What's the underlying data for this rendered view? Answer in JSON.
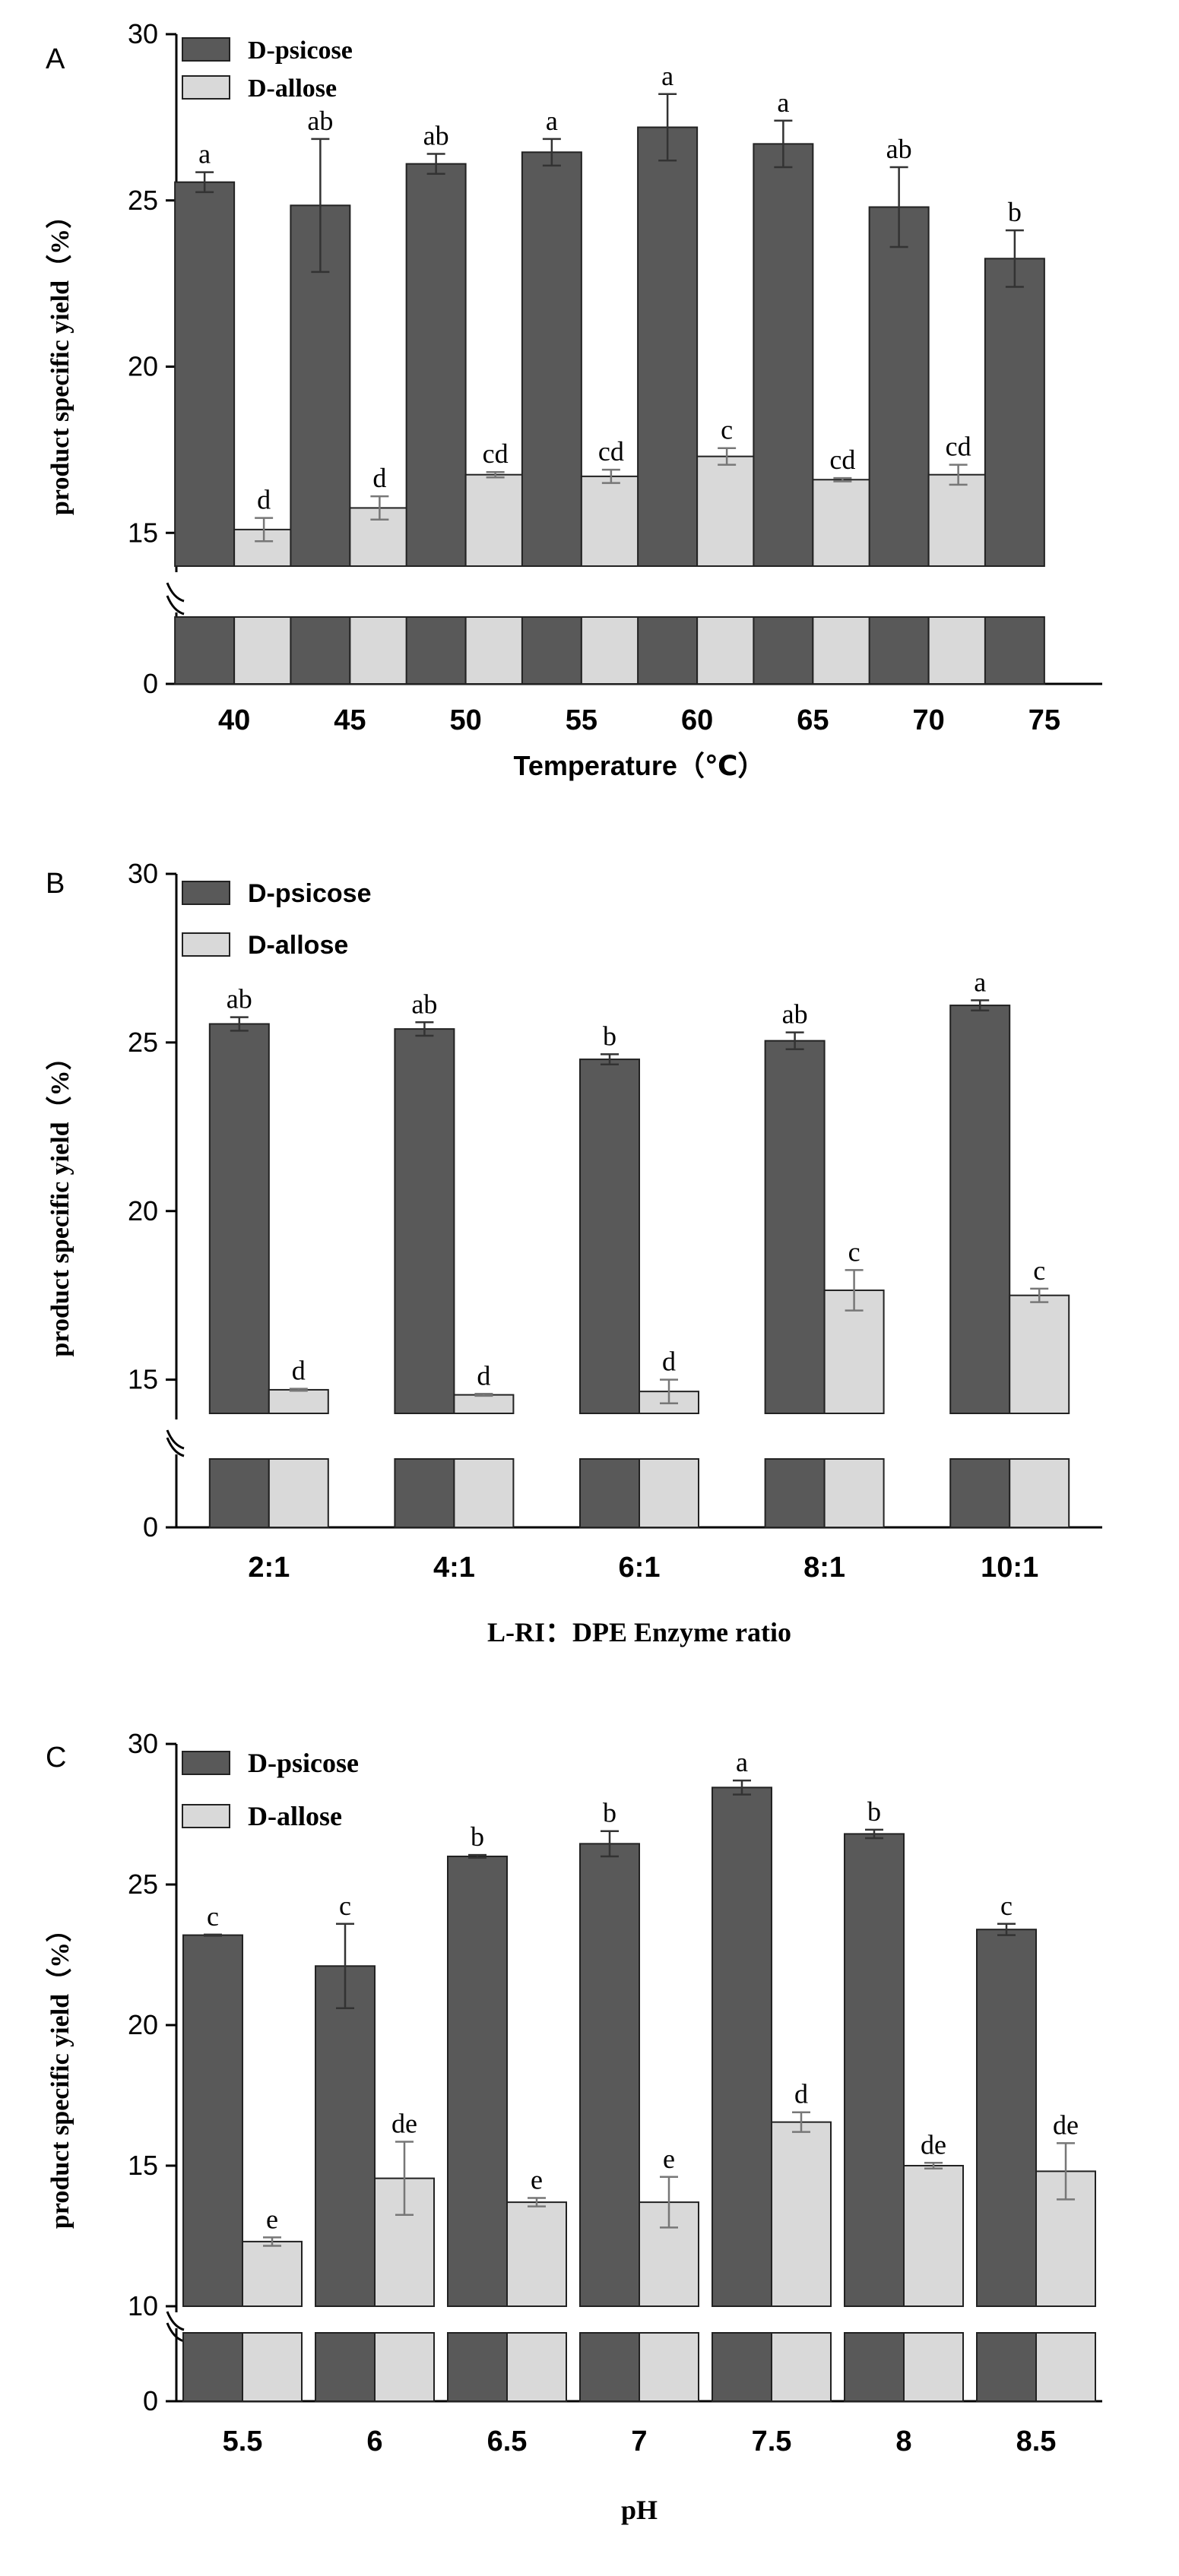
{
  "chart_data": [
    {
      "type": "bar",
      "panel_letter": "A",
      "categories": [
        "40",
        "45",
        "50",
        "55",
        "60",
        "65",
        "70",
        "75"
      ],
      "series": [
        {
          "name": "D-psicose",
          "color": "#595959",
          "values": [
            25.55,
            24.85,
            26.1,
            26.45,
            27.2,
            26.7,
            24.8,
            23.25
          ],
          "errors": [
            0.3,
            2.0,
            0.3,
            0.4,
            1.0,
            0.7,
            1.2,
            0.85
          ],
          "letters": [
            "a",
            "ab",
            "ab",
            "a",
            "a",
            "a",
            "ab",
            "b"
          ]
        },
        {
          "name": "D-allose",
          "color": "#d9d9d9",
          "values": [
            15.1,
            15.75,
            16.75,
            16.7,
            17.3,
            16.6,
            16.75,
            null
          ],
          "errors": [
            0.35,
            0.35,
            0.08,
            0.2,
            0.25,
            0.05,
            0.3,
            null
          ],
          "letters": [
            "d",
            "d",
            "cd",
            "cd",
            "c",
            "cd",
            "cd",
            ""
          ]
        }
      ],
      "xlabel": "Temperature（℃）",
      "ylabel": "product specific yield（%）",
      "ylim": [
        14,
        30
      ],
      "yticks": [
        "15",
        "20",
        "25",
        "30"
      ],
      "axis_break": true,
      "zero_label": "0",
      "legend": "top-left",
      "grid": false
    },
    {
      "type": "bar",
      "panel_letter": "B",
      "categories": [
        "2:1",
        "4:1",
        "6:1",
        "8:1",
        "10:1"
      ],
      "series": [
        {
          "name": "D-psicose",
          "color": "#595959",
          "values": [
            25.55,
            25.4,
            24.5,
            25.05,
            26.1
          ],
          "errors": [
            0.2,
            0.2,
            0.15,
            0.25,
            0.15
          ],
          "letters": [
            "ab",
            "ab",
            "b",
            "ab",
            "a"
          ]
        },
        {
          "name": "D-allose",
          "color": "#d9d9d9",
          "values": [
            14.7,
            14.55,
            14.65,
            17.65,
            17.5
          ],
          "errors": [
            0.03,
            0.03,
            0.35,
            0.6,
            0.2
          ],
          "letters": [
            "d",
            "d",
            "d",
            "c",
            "c"
          ]
        }
      ],
      "xlabel": "L-RI：DPE Enzyme ratio",
      "ylabel": "product specific yield（%）",
      "ylim": [
        14,
        30
      ],
      "yticks": [
        "15",
        "20",
        "25",
        "30"
      ],
      "axis_break": true,
      "zero_label": "0",
      "legend": "top-left",
      "grid": false
    },
    {
      "type": "bar",
      "panel_letter": "C",
      "categories": [
        "5.5",
        "6",
        "6.5",
        "7",
        "7.5",
        "8",
        "8.5"
      ],
      "series": [
        {
          "name": "D-psicose",
          "color": "#595959",
          "values": [
            23.2,
            22.1,
            26.0,
            26.45,
            28.45,
            26.8,
            23.4
          ],
          "errors": [
            0.02,
            1.5,
            0.05,
            0.45,
            0.25,
            0.15,
            0.2
          ],
          "letters": [
            "c",
            "c",
            "b",
            "b",
            "a",
            "b",
            "c"
          ]
        },
        {
          "name": "D-allose",
          "color": "#d9d9d9",
          "values": [
            12.3,
            14.55,
            13.7,
            13.7,
            16.55,
            15.0,
            14.8
          ],
          "errors": [
            0.15,
            1.3,
            0.15,
            0.9,
            0.35,
            0.1,
            1.0
          ],
          "letters": [
            "e",
            "de",
            "e",
            "e",
            "d",
            "de",
            "de"
          ]
        }
      ],
      "xlabel": "pH",
      "ylabel": "product specific yield（%）",
      "ylim": [
        10,
        30
      ],
      "yticks": [
        "10",
        "15",
        "20",
        "25",
        "30"
      ],
      "axis_break": true,
      "zero_label": "0",
      "legend": "top-left",
      "grid": false
    }
  ]
}
